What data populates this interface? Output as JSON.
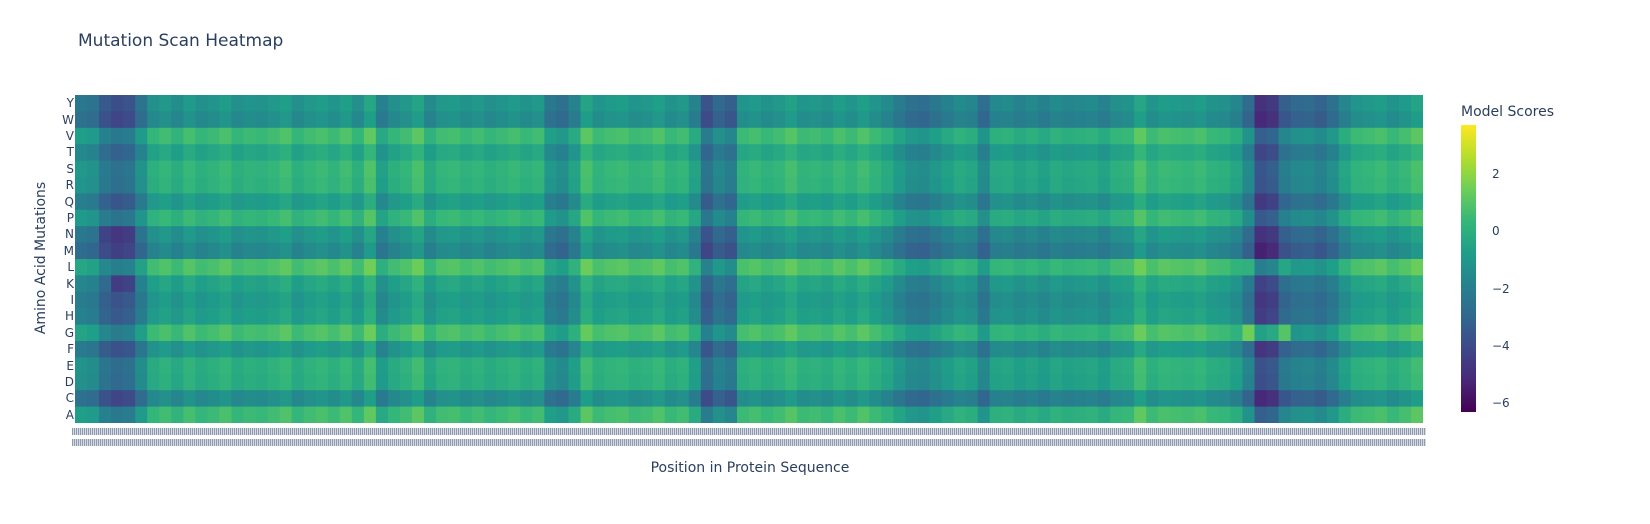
{
  "chart_data": {
    "type": "heatmap",
    "title": "Mutation Scan Heatmap",
    "xlabel": "Position in Protein Sequence",
    "ylabel": "Amino Acid Mutations",
    "colorbar_title": "Model Scores",
    "colorscale": "Viridis",
    "zrange": [
      -6.3,
      3.7
    ],
    "colorbar_ticks": [
      2,
      0,
      -2,
      -4,
      -6
    ],
    "colorbar_tick_labels": [
      "2",
      "0",
      "−2",
      "−4",
      "−6"
    ],
    "y_categories": [
      "Y",
      "W",
      "V",
      "T",
      "S",
      "R",
      "Q",
      "P",
      "N",
      "M",
      "L",
      "K",
      "I",
      "H",
      "G",
      "F",
      "E",
      "D",
      "C",
      "A"
    ],
    "row_base": [
      -1.3,
      -1.6,
      0.3,
      -0.6,
      0.0,
      -0.1,
      -1.0,
      0.1,
      -1.3,
      -1.8,
      0.6,
      -0.7,
      -1.1,
      -0.9,
      0.5,
      -1.2,
      -0.2,
      -0.3,
      -1.6,
      0.3
    ],
    "position_effect": [
      -1,
      -1.2,
      -2.2,
      -2.6,
      -2.4,
      -1.2,
      0,
      0.3,
      -0.1,
      0.4,
      0,
      0.2,
      0.5,
      0,
      0.2,
      0.1,
      0.3,
      0.6,
      0,
      0.3,
      0.5,
      0.2,
      0.6,
      0,
      0.9,
      -0.6,
      0,
      0.3,
      0.8,
      -0.2,
      0.3,
      0.4,
      0.1,
      0.3,
      0,
      0.2,
      0.4,
      0.1,
      0.3,
      -1.0,
      -1.3,
      -0.5,
      0.8,
      0.2,
      0.4,
      0.5,
      0.2,
      0.3,
      0.6,
      0.1,
      0.3,
      -0.5,
      -2.4,
      -1.6,
      -2.0,
      0.2,
      0.4,
      0.1,
      0.3,
      0.7,
      0.2,
      0.3,
      0.1,
      0.5,
      0.2,
      0.6,
      0.2,
      -0.2,
      -0.8,
      -1.3,
      -1.4,
      -1.0,
      -0.6,
      -0.2,
      -0.4,
      -1.4,
      -0.3,
      -0.2,
      -0.5,
      -0.3,
      -0.6,
      -0.2,
      -0.4,
      -0.3,
      -0.2,
      -0.5,
      0,
      0.1,
      0.9,
      0.2,
      0.5,
      0.4,
      0.3,
      0.5,
      0.1,
      0,
      -0.4,
      -1.5,
      -3.6,
      -3.3,
      -2.0,
      -1.6,
      -1.5,
      -1.8,
      -1.3,
      -0.4,
      0.2,
      0.3,
      0.5,
      0.1,
      0.4,
      0.8
    ],
    "interaction_adjustments": [
      {
        "row": "G",
        "positions": [
          97,
          100
        ],
        "delta": 2.5
      },
      {
        "row": "L",
        "positions": [
          97,
          100
        ],
        "delta": 1.0
      },
      {
        "row": "K",
        "positions": [
          3,
          4
        ],
        "delta": -1.2
      },
      {
        "row": "N",
        "positions": [
          2,
          4
        ],
        "delta": -0.8
      }
    ]
  }
}
